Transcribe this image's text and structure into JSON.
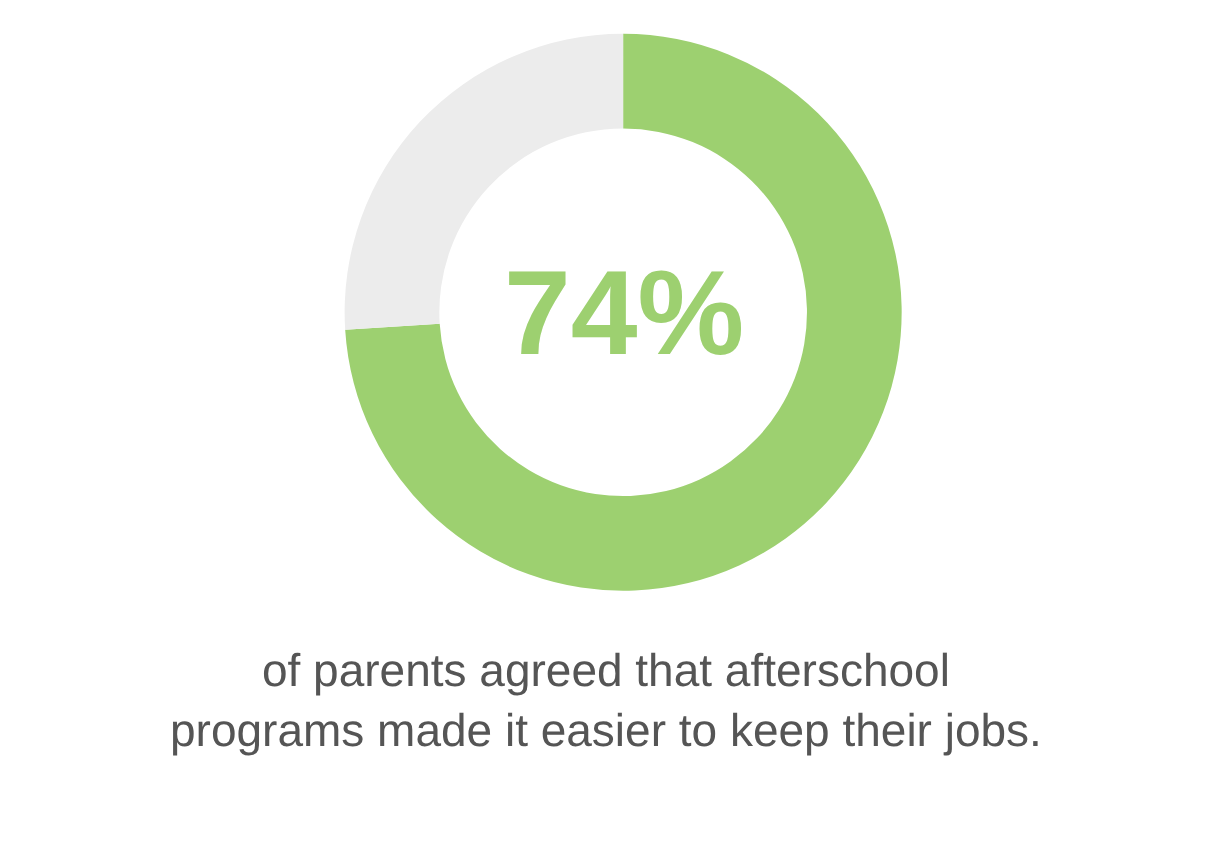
{
  "chart_data": {
    "type": "donut",
    "categories": [
      null,
      null
    ],
    "values": [
      74,
      26
    ],
    "colors": [
      "#9dd070",
      "#ececec"
    ],
    "value_labels": [
      "74%",
      null
    ],
    "annotations": [
      "of parents agreed that afterschool\nprograms made it easier to keep their jobs."
    ]
  }
}
